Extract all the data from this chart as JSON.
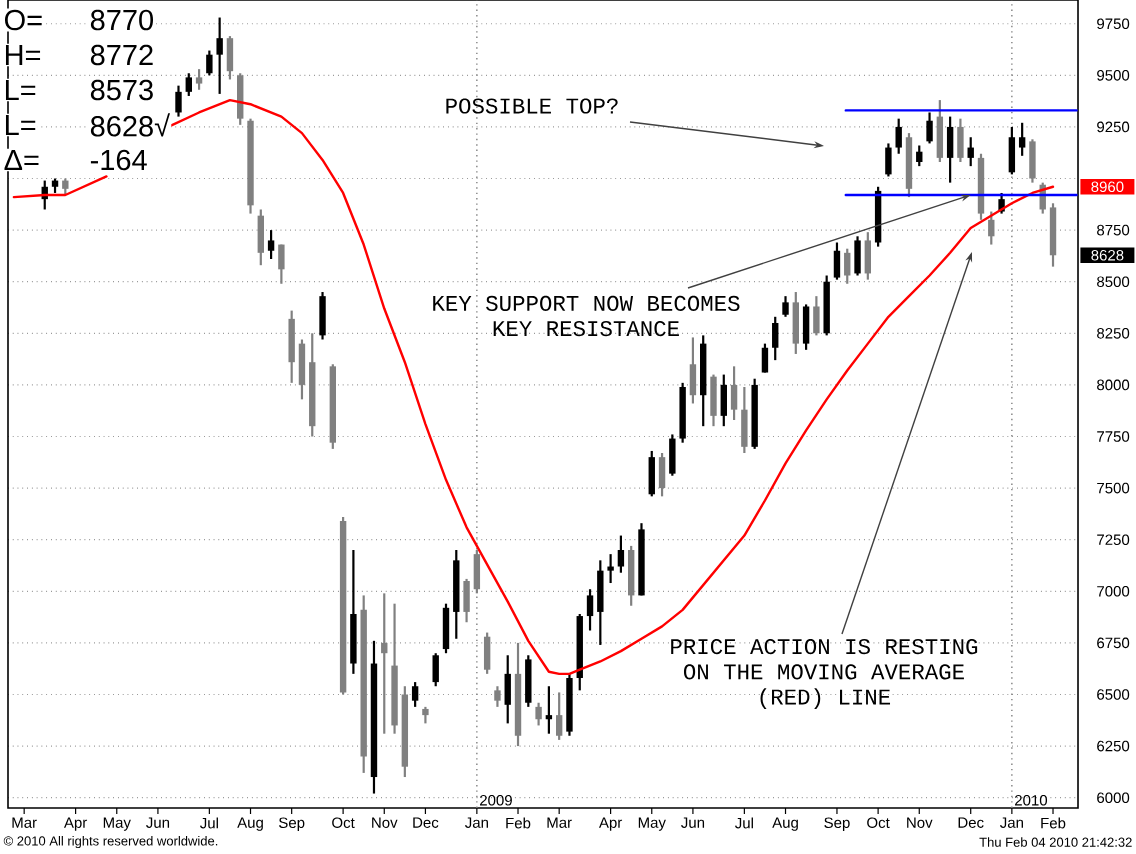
{
  "chart_data": {
    "type": "candlestick",
    "xlim": [
      "2008-02-21",
      "2010-02-18"
    ],
    "ylim": [
      5950,
      9865
    ],
    "xticks": [
      {
        "value": "2008-03-03",
        "label": "Mar"
      },
      {
        "value": "2008-04-07",
        "label": "Apr"
      },
      {
        "value": "2008-05-05",
        "label": "May"
      },
      {
        "value": "2008-06-02",
        "label": "Jun"
      },
      {
        "value": "2008-07-07",
        "label": "Jul"
      },
      {
        "value": "2008-08-04",
        "label": "Aug"
      },
      {
        "value": "2008-09-01",
        "label": "Sep"
      },
      {
        "value": "2008-10-06",
        "label": "Oct"
      },
      {
        "value": "2008-11-03",
        "label": "Nov"
      },
      {
        "value": "2008-12-01",
        "label": "Dec"
      },
      {
        "value": "2009-01-05",
        "label": "Jan"
      },
      {
        "value": "2009-02-02",
        "label": "Feb"
      },
      {
        "value": "2009-03-02",
        "label": "Mar"
      },
      {
        "value": "2009-04-06",
        "label": "Apr"
      },
      {
        "value": "2009-05-04",
        "label": "May"
      },
      {
        "value": "2009-06-01",
        "label": "Jun"
      },
      {
        "value": "2009-07-06",
        "label": "Jul"
      },
      {
        "value": "2009-08-03",
        "label": "Aug"
      },
      {
        "value": "2009-09-07",
        "label": "Sep"
      },
      {
        "value": "2009-10-05",
        "label": "Oct"
      },
      {
        "value": "2009-11-02",
        "label": "Nov"
      },
      {
        "value": "2009-12-07",
        "label": "Dec"
      },
      {
        "value": "2010-01-04",
        "label": "Jan"
      },
      {
        "value": "2010-02-01",
        "label": "Feb"
      }
    ],
    "yticks": [
      6000,
      6250,
      6500,
      6750,
      7000,
      7250,
      7500,
      7750,
      8000,
      8250,
      8500,
      8750,
      {
        "value": 9000,
        "label": null
      },
      9250,
      9500,
      9750
    ],
    "grid": "y",
    "series": [
      {
        "color": "#000000",
        "x": [
          "2008-03-17",
          "2008-03-24",
          "2008-03-31",
          "2008-06-16",
          "2008-06-23",
          "2008-06-30",
          "2008-07-07",
          "2008-07-14",
          "2008-07-21",
          "2008-07-28",
          "2008-08-04",
          "2008-08-11",
          "2008-08-18",
          "2008-08-25",
          "2008-09-01",
          "2008-09-08",
          "2008-09-15",
          "2008-09-22",
          "2008-09-29",
          "2008-10-06",
          "2008-10-13",
          "2008-10-20",
          "2008-10-27",
          "2008-11-03",
          "2008-11-10",
          "2008-11-17",
          "2008-11-24",
          "2008-12-01",
          "2008-12-08",
          "2008-12-15",
          "2008-12-22",
          "2008-12-29",
          "2009-01-05",
          "2009-01-12",
          "2009-01-19",
          "2009-01-26",
          "2009-02-02",
          "2009-02-09",
          "2009-02-16",
          "2009-02-23",
          "2009-03-02",
          "2009-03-09",
          "2009-03-16",
          "2009-03-23",
          "2009-03-30",
          "2009-04-06",
          "2009-04-13",
          "2009-04-20",
          "2009-04-27",
          "2009-05-04",
          "2009-05-11",
          "2009-05-18",
          "2009-05-25",
          "2009-06-01",
          "2009-06-08",
          "2009-06-15",
          "2009-06-22",
          "2009-06-29",
          "2009-07-06",
          "2009-07-13",
          "2009-07-20",
          "2009-07-27",
          "2009-08-03",
          "2009-08-10",
          "2009-08-17",
          "2009-08-24",
          "2009-08-31",
          "2009-09-07",
          "2009-09-14",
          "2009-09-21",
          "2009-09-28",
          "2009-10-05",
          "2009-10-12",
          "2009-10-19",
          "2009-10-26",
          "2009-11-02",
          "2009-11-09",
          "2009-11-16",
          "2009-11-23",
          "2009-11-30",
          "2009-12-07",
          "2009-12-14",
          "2009-12-21",
          "2009-12-28",
          "2010-01-04",
          "2010-01-11",
          "2010-01-18",
          "2010-01-25",
          "2010-02-01"
        ],
        "ohlc": [
          [
            8900,
            8990,
            8850,
            8960
          ],
          [
            8960,
            9000,
            8930,
            8990
          ],
          [
            8990,
            9000,
            8920,
            8950
          ],
          [
            9320,
            9450,
            9300,
            9420
          ],
          [
            9420,
            9510,
            9400,
            9490
          ],
          [
            9490,
            9530,
            9430,
            9460
          ],
          [
            9510,
            9620,
            9500,
            9600
          ],
          [
            9600,
            9780,
            9410,
            9680
          ],
          [
            9680,
            9690,
            9480,
            9520
          ],
          [
            9500,
            9510,
            9260,
            9290
          ],
          [
            9280,
            9290,
            8830,
            8870
          ],
          [
            8820,
            8850,
            8580,
            8640
          ],
          [
            8650,
            8750,
            8610,
            8700
          ],
          [
            8680,
            8680,
            8490,
            8560
          ],
          [
            8320,
            8360,
            8010,
            8110
          ],
          [
            8200,
            8220,
            7930,
            8000
          ],
          [
            8110,
            8250,
            7750,
            7800
          ],
          [
            8240,
            8450,
            8220,
            8430
          ],
          [
            8090,
            8100,
            7690,
            7720
          ],
          [
            7340,
            7360,
            6500,
            6510
          ],
          [
            6650,
            7200,
            6600,
            6890
          ],
          [
            6910,
            6980,
            6120,
            6200
          ],
          [
            6100,
            6760,
            6020,
            6650
          ],
          [
            6750,
            6990,
            6310,
            6700
          ],
          [
            6640,
            6940,
            6310,
            6350
          ],
          [
            6500,
            6540,
            6100,
            6150
          ],
          [
            6470,
            6560,
            6440,
            6540
          ],
          [
            6430,
            6440,
            6360,
            6400
          ],
          [
            6560,
            6700,
            6540,
            6690
          ],
          [
            6720,
            6940,
            6700,
            6920
          ],
          [
            6900,
            7200,
            6770,
            7150
          ],
          [
            7050,
            7060,
            6850,
            6900
          ],
          [
            7180,
            7200,
            6990,
            7010
          ],
          [
            6780,
            6800,
            6600,
            6620
          ],
          [
            6520,
            6540,
            6440,
            6470
          ],
          [
            6450,
            6690,
            6360,
            6600
          ],
          [
            6600,
            6750,
            6250,
            6300
          ],
          [
            6460,
            6690,
            6440,
            6670
          ],
          [
            6440,
            6460,
            6350,
            6380
          ],
          [
            6380,
            6540,
            6310,
            6400
          ],
          [
            6400,
            6510,
            6280,
            6300
          ],
          [
            6320,
            6600,
            6300,
            6580
          ],
          [
            6580,
            6890,
            6520,
            6880
          ],
          [
            6880,
            7010,
            6810,
            6980
          ],
          [
            6900,
            7150,
            6740,
            7100
          ],
          [
            7100,
            7180,
            7040,
            7120
          ],
          [
            7120,
            7270,
            7090,
            7200
          ],
          [
            7200,
            7220,
            6930,
            6980
          ],
          [
            6980,
            7330,
            6980,
            7300
          ],
          [
            7470,
            7680,
            7460,
            7650
          ],
          [
            7650,
            7670,
            7460,
            7500
          ],
          [
            7570,
            7760,
            7560,
            7740
          ],
          [
            7740,
            8010,
            7720,
            7990
          ],
          [
            8100,
            8230,
            7910,
            7950
          ],
          [
            7950,
            8240,
            7800,
            8200
          ],
          [
            8040,
            8050,
            7800,
            7850
          ],
          [
            7850,
            8050,
            7800,
            8000
          ],
          [
            8000,
            8090,
            7830,
            7880
          ],
          [
            7880,
            7990,
            7670,
            7700
          ],
          [
            7700,
            8030,
            7690,
            8000
          ],
          [
            8060,
            8200,
            8060,
            8180
          ],
          [
            8180,
            8330,
            8120,
            8300
          ],
          [
            8340,
            8430,
            8330,
            8400
          ],
          [
            8400,
            8450,
            8150,
            8200
          ],
          [
            8200,
            8390,
            8170,
            8380
          ],
          [
            8380,
            8430,
            8240,
            8250
          ],
          [
            8250,
            8530,
            8240,
            8500
          ],
          [
            8520,
            8690,
            8510,
            8650
          ],
          [
            8640,
            8660,
            8490,
            8530
          ],
          [
            8540,
            8720,
            8530,
            8700
          ],
          [
            8700,
            8740,
            8510,
            8540
          ],
          [
            8690,
            8960,
            8670,
            8940
          ],
          [
            9020,
            9170,
            9010,
            9150
          ],
          [
            9150,
            9290,
            9120,
            9250
          ],
          [
            9200,
            9220,
            8910,
            8950
          ],
          [
            9080,
            9160,
            9060,
            9130
          ],
          [
            9180,
            9320,
            9170,
            9280
          ],
          [
            9300,
            9380,
            9080,
            9100
          ],
          [
            9100,
            9300,
            8980,
            9250
          ],
          [
            9250,
            9290,
            9080,
            9100
          ],
          [
            9100,
            9200,
            9060,
            9150
          ],
          [
            9100,
            9120,
            8800,
            8830
          ],
          [
            8800,
            8840,
            8680,
            8720
          ],
          [
            8840,
            8930,
            8830,
            8900
          ],
          [
            9030,
            9250,
            9020,
            9200
          ],
          [
            9150,
            9270,
            9110,
            9200
          ],
          [
            9180,
            9190,
            8980,
            9000
          ],
          [
            8970,
            8980,
            8830,
            8850
          ],
          [
            8860,
            8880,
            8573,
            8628
          ]
        ],
        "colors": [
          "#000000",
          "#000000",
          "#808080",
          "#000000",
          "#000000",
          "#808080",
          "#000000",
          "#000000",
          "#808080",
          "#808080",
          "#808080",
          "#808080",
          "#000000",
          "#808080",
          "#808080",
          "#808080",
          "#808080",
          "#000000",
          "#808080",
          "#808080",
          "#000000",
          "#808080",
          "#000000",
          "#808080",
          "#808080",
          "#808080",
          "#000000",
          "#808080",
          "#000000",
          "#000000",
          "#000000",
          "#808080",
          "#808080",
          "#808080",
          "#808080",
          "#000000",
          "#808080",
          "#000000",
          "#808080",
          "#000000",
          "#808080",
          "#000000",
          "#000000",
          "#000000",
          "#000000",
          "#000000",
          "#000000",
          "#808080",
          "#000000",
          "#000000",
          "#808080",
          "#000000",
          "#000000",
          "#808080",
          "#000000",
          "#808080",
          "#000000",
          "#808080",
          "#808080",
          "#000000",
          "#000000",
          "#000000",
          "#000000",
          "#808080",
          "#000000",
          "#808080",
          "#000000",
          "#000000",
          "#808080",
          "#000000",
          "#808080",
          "#000000",
          "#000000",
          "#000000",
          "#808080",
          "#000000",
          "#000000",
          "#808080",
          "#000000",
          "#808080",
          "#000000",
          "#808080",
          "#808080",
          "#000000",
          "#000000",
          "#000000",
          "#808080",
          "#808080",
          "#808080"
        ],
        "value_labels": [
          null,
          null,
          null,
          null,
          null,
          null,
          null,
          null,
          null,
          null,
          null,
          null,
          null,
          null,
          null,
          null,
          null,
          null,
          null,
          null,
          null,
          null,
          null,
          null,
          null,
          null,
          null,
          null,
          null,
          null,
          null,
          null,
          null,
          null,
          null,
          null,
          null,
          null,
          null,
          null,
          null,
          null,
          null,
          null,
          null,
          null,
          null,
          null,
          null,
          null,
          null,
          null,
          null,
          null,
          null,
          null,
          null,
          null,
          null,
          null,
          null,
          null,
          null,
          null,
          null,
          null,
          null,
          null,
          null,
          null,
          null,
          null,
          null,
          null,
          null,
          null,
          null,
          null,
          null,
          null,
          null,
          null,
          null,
          null,
          null,
          null,
          null,
          null,
          "8628"
        ]
      },
      {
        "type": "line",
        "color": "#ff0000",
        "x": [
          "2008-02-25",
          "2008-03-17",
          "2008-03-31",
          "2008-04-28",
          "2008-05-19",
          "2008-06-09",
          "2008-06-30",
          "2008-07-21",
          "2008-08-04",
          "2008-08-25",
          "2008-09-08",
          "2008-09-22",
          "2008-10-06",
          "2008-10-20",
          "2008-11-03",
          "2008-11-17",
          "2008-12-01",
          "2008-12-15",
          "2008-12-29",
          "2009-01-12",
          "2009-01-26",
          "2009-02-09",
          "2009-02-23",
          "2009-03-02",
          "2009-03-09",
          "2009-03-16",
          "2009-03-30",
          "2009-04-13",
          "2009-04-27",
          "2009-05-11",
          "2009-05-25",
          "2009-06-08",
          "2009-06-22",
          "2009-07-06",
          "2009-07-20",
          "2009-08-03",
          "2009-08-17",
          "2009-08-31",
          "2009-09-14",
          "2009-09-28",
          "2009-10-12",
          "2009-10-26",
          "2009-11-09",
          "2009-11-23",
          "2009-12-07",
          "2009-12-21",
          "2010-01-04",
          "2010-01-18",
          "2010-02-01"
        ],
        "values": [
          8910,
          8920,
          8920,
          9010,
          null,
          9250,
          9320,
          9380,
          9360,
          9300,
          9220,
          9090,
          8930,
          8680,
          8370,
          8110,
          7810,
          7540,
          7310,
          7130,
          6950,
          6760,
          6610,
          6600,
          6600,
          6620,
          6660,
          6710,
          6770,
          6830,
          6910,
          7030,
          7150,
          7270,
          7440,
          7620,
          7780,
          7930,
          8070,
          8200,
          8330,
          8430,
          8530,
          8640,
          8760,
          8820,
          8880,
          8930,
          8960
        ]
      },
      {
        "type": "line",
        "color": "#0000ff",
        "x": [
          "2009-09-13",
          "2010-02-17"
        ],
        "values": [
          9330,
          9330
        ]
      },
      {
        "type": "line",
        "color": "#0000ff",
        "x": [
          "2009-09-13",
          "2010-02-17"
        ],
        "values": [
          8920,
          8920
        ]
      }
    ],
    "ref_lines": [
      {
        "axis": "x",
        "value": "2009-01-05",
        "label": "2009",
        "line_style": "dotted",
        "color": "#808080"
      },
      {
        "axis": "x",
        "value": "2010-01-04",
        "label": "2010",
        "line_style": "dotted",
        "color": "#808080"
      }
    ],
    "annotations": [
      "O=",
      "8770",
      "H=",
      "8772",
      "L=",
      "8573",
      "L=",
      "8628√",
      "Δ=",
      "-164",
      "POSSIBLE TOP?",
      {
        "text": "KEY SUPPORT NOW BECOMES KEY RESISTANCE",
        "x": "2009-12-07",
        "y": 8920
      },
      "PRICE ACTION IS RESTING ON THE MOVING AVERAGE (RED) LINE",
      {
        "text": "8960",
        "x": "2010-02-01",
        "y": 8960
      },
      "© 2010 All rights reserved worldwide.",
      "Thu Feb 04 2010 21:42:32"
    ]
  }
}
